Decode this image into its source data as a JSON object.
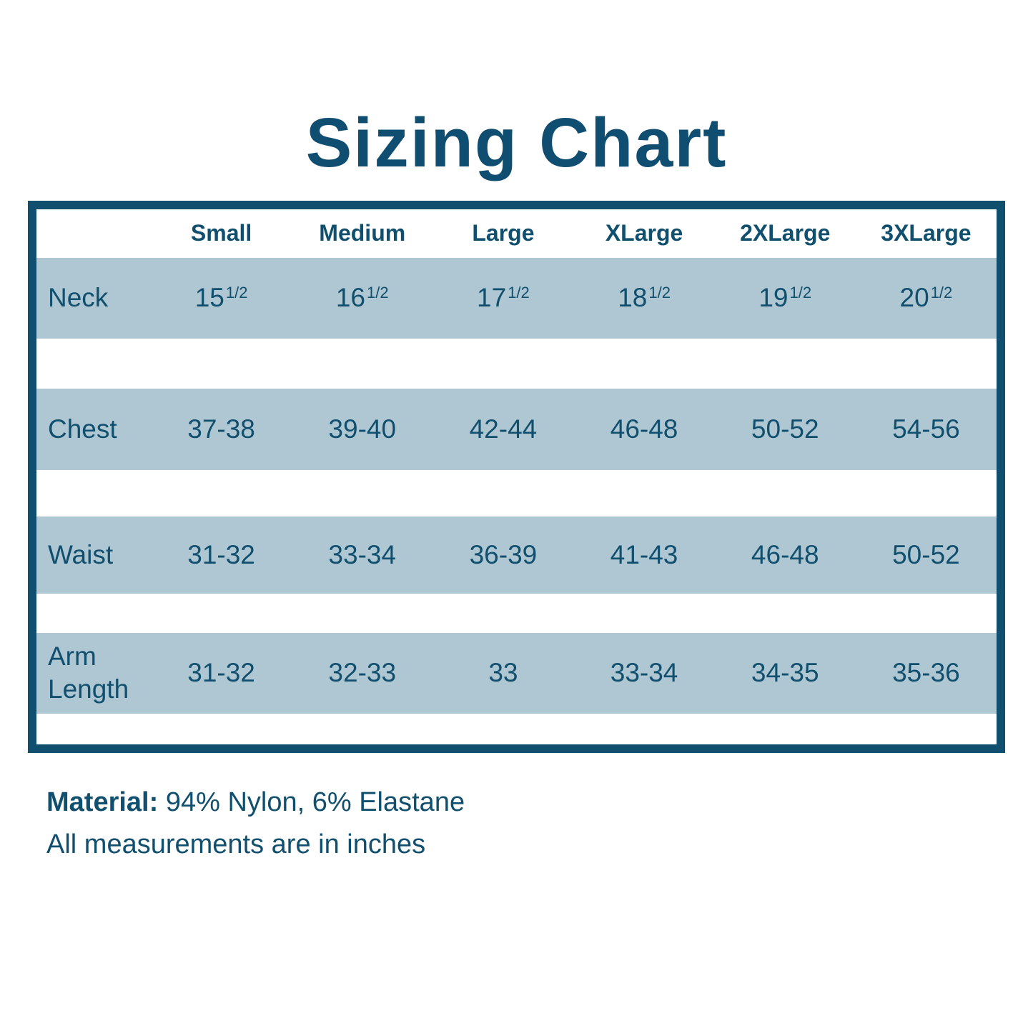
{
  "title": "Sizing Chart",
  "colors": {
    "dark_blue": "#114f6e",
    "band_blue": "#aec7d3",
    "background": "#ffffff"
  },
  "chart_data": {
    "type": "table",
    "title": "Sizing Chart",
    "columns": [
      "Small",
      "Medium",
      "Large",
      "XLarge",
      "2XLarge",
      "3XLarge"
    ],
    "rows": [
      {
        "label": "Neck",
        "values": [
          {
            "base": "15",
            "sup": "1/2"
          },
          {
            "base": "16",
            "sup": "1/2"
          },
          {
            "base": "17",
            "sup": "1/2"
          },
          {
            "base": "18",
            "sup": "1/2"
          },
          {
            "base": "19",
            "sup": "1/2"
          },
          {
            "base": "20",
            "sup": "1/2"
          }
        ]
      },
      {
        "label": "Chest",
        "values": [
          "37-38",
          "39-40",
          "42-44",
          "46-48",
          "50-52",
          "54-56"
        ]
      },
      {
        "label": "Waist",
        "values": [
          "31-32",
          "33-34",
          "36-39",
          "41-43",
          "46-48",
          "50-52"
        ]
      },
      {
        "label": "Arm Length",
        "values": [
          "31-32",
          "32-33",
          "33",
          "33-34",
          "34-35",
          "35-36"
        ]
      }
    ],
    "layout": {
      "row_striping": "alternating light blue bands",
      "units": "inches"
    }
  },
  "notes": {
    "material_label": "Material:",
    "material_value": " 94% Nylon, 6% Elastane",
    "measurements": "All measurements are in inches"
  }
}
